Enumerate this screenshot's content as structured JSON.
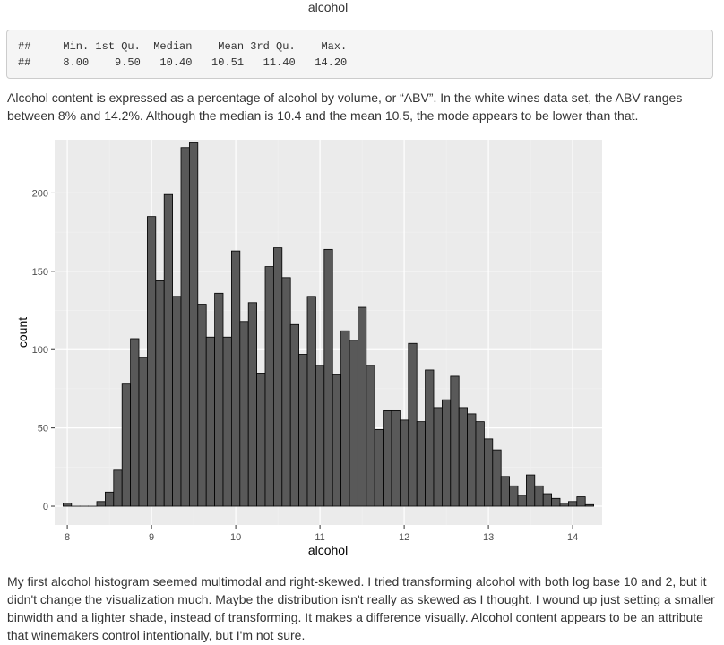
{
  "section_title": "alcohol",
  "summary": {
    "line1": "##     Min. 1st Qu.  Median    Mean 3rd Qu.    Max.",
    "line2": "##     8.00    9.50   10.40   10.51   11.40   14.20"
  },
  "paragraph1": "Alcohol content is expressed as a percentage of alcohol by volume, or “ABV”. In the white wines data set, the ABV ranges between 8% and 14.2%. Although the median is 10.4 and the mean 10.5, the mode appears to be lower than that.",
  "paragraph2": "My first alcohol histogram seemed multimodal and right-skewed. I tried transforming alcohol with both log base 10 and 2, but it didn't change the visualization much. Maybe the distribution isn't really as skewed as I thought. I wound up just setting a smaller binwidth and a lighter shade, instead of transforming. It makes a difference visually. Alcohol content appears to be an attribute that winemakers control intentionally, but I'm not sure.",
  "colors": {
    "panel_bg": "#ebebeb",
    "grid_major": "#ffffff",
    "grid_minor": "#f2f2f2",
    "bar_fill": "#595959",
    "bar_outline": "#000000",
    "axis_text": "#4d4d4d"
  },
  "chart_data": {
    "type": "bar",
    "xlabel": "alcohol",
    "ylabel": "count",
    "binwidth": 0.1,
    "xlim": [
      7.85,
      14.35
    ],
    "ylim": [
      -12,
      234
    ],
    "xticks": [
      8,
      9,
      10,
      11,
      12,
      13,
      14
    ],
    "yticks": [
      0,
      50,
      100,
      150,
      200
    ],
    "grid": true,
    "bins": [
      {
        "x": 8.0,
        "count": 2
      },
      {
        "x": 8.1,
        "count": 0
      },
      {
        "x": 8.2,
        "count": 0
      },
      {
        "x": 8.3,
        "count": 0
      },
      {
        "x": 8.4,
        "count": 3
      },
      {
        "x": 8.5,
        "count": 9
      },
      {
        "x": 8.6,
        "count": 23
      },
      {
        "x": 8.7,
        "count": 78
      },
      {
        "x": 8.8,
        "count": 107
      },
      {
        "x": 8.9,
        "count": 95
      },
      {
        "x": 9.0,
        "count": 185
      },
      {
        "x": 9.1,
        "count": 144
      },
      {
        "x": 9.2,
        "count": 199
      },
      {
        "x": 9.3,
        "count": 134
      },
      {
        "x": 9.4,
        "count": 229
      },
      {
        "x": 9.5,
        "count": 232
      },
      {
        "x": 9.6,
        "count": 129
      },
      {
        "x": 9.7,
        "count": 108
      },
      {
        "x": 9.8,
        "count": 136
      },
      {
        "x": 9.9,
        "count": 108
      },
      {
        "x": 10.0,
        "count": 163
      },
      {
        "x": 10.1,
        "count": 118
      },
      {
        "x": 10.2,
        "count": 130
      },
      {
        "x": 10.3,
        "count": 85
      },
      {
        "x": 10.4,
        "count": 153
      },
      {
        "x": 10.5,
        "count": 165
      },
      {
        "x": 10.6,
        "count": 146
      },
      {
        "x": 10.7,
        "count": 116
      },
      {
        "x": 10.8,
        "count": 97
      },
      {
        "x": 10.9,
        "count": 134
      },
      {
        "x": 11.0,
        "count": 90
      },
      {
        "x": 11.1,
        "count": 164
      },
      {
        "x": 11.2,
        "count": 84
      },
      {
        "x": 11.3,
        "count": 112
      },
      {
        "x": 11.4,
        "count": 106
      },
      {
        "x": 11.5,
        "count": 127
      },
      {
        "x": 11.6,
        "count": 90
      },
      {
        "x": 11.7,
        "count": 49
      },
      {
        "x": 11.8,
        "count": 61
      },
      {
        "x": 11.9,
        "count": 61
      },
      {
        "x": 12.0,
        "count": 55
      },
      {
        "x": 12.1,
        "count": 104
      },
      {
        "x": 12.2,
        "count": 54
      },
      {
        "x": 12.3,
        "count": 87
      },
      {
        "x": 12.4,
        "count": 63
      },
      {
        "x": 12.5,
        "count": 68
      },
      {
        "x": 12.6,
        "count": 83
      },
      {
        "x": 12.7,
        "count": 63
      },
      {
        "x": 12.8,
        "count": 59
      },
      {
        "x": 12.9,
        "count": 54
      },
      {
        "x": 13.0,
        "count": 43
      },
      {
        "x": 13.1,
        "count": 36
      },
      {
        "x": 13.2,
        "count": 19
      },
      {
        "x": 13.3,
        "count": 13
      },
      {
        "x": 13.4,
        "count": 7
      },
      {
        "x": 13.5,
        "count": 20
      },
      {
        "x": 13.6,
        "count": 13
      },
      {
        "x": 13.7,
        "count": 8
      },
      {
        "x": 13.8,
        "count": 5
      },
      {
        "x": 13.9,
        "count": 2
      },
      {
        "x": 14.0,
        "count": 3
      },
      {
        "x": 14.1,
        "count": 6
      },
      {
        "x": 14.2,
        "count": 1
      }
    ]
  }
}
